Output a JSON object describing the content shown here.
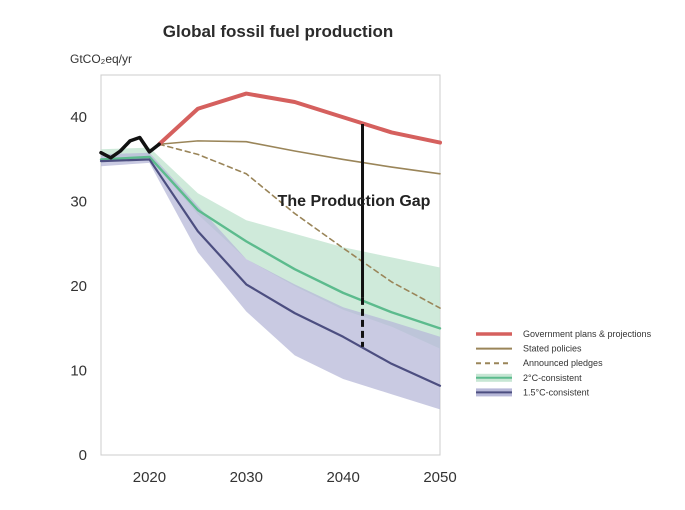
{
  "chart_data": {
    "type": "line",
    "title": "Global fossil fuel production",
    "ylabel": "GtCO₂eq/yr",
    "xlim": [
      2015,
      2050
    ],
    "ylim": [
      0,
      45
    ],
    "xticks": [
      2020,
      2030,
      2040,
      2050
    ],
    "yticks": [
      0,
      10,
      20,
      30,
      40
    ],
    "annotation": "The Production Gap",
    "gap_marker": {
      "x": 2042,
      "y_top": 39.2,
      "y_mid": 18.6,
      "y_bottom": 12.8
    },
    "historical": {
      "x": [
        2015,
        2016,
        2017,
        2018,
        2019,
        2020,
        2021
      ],
      "y": [
        35.8,
        35.2,
        36.0,
        37.2,
        37.6,
        35.9,
        36.8
      ]
    },
    "bands": [
      {
        "name": "2°C-consistent",
        "x": [
          2015,
          2020,
          2025,
          2030,
          2035,
          2040,
          2045,
          2050
        ],
        "upper": [
          36.2,
          36.4,
          31.0,
          27.8,
          26.2,
          24.6,
          23.4,
          22.2
        ],
        "lower": [
          35.0,
          35.2,
          28.5,
          23.2,
          20.0,
          17.2,
          15.2,
          12.6
        ]
      },
      {
        "name": "1.5°C-consistent",
        "x": [
          2015,
          2020,
          2025,
          2030,
          2035,
          2040,
          2045,
          2050
        ],
        "upper": [
          35.6,
          35.8,
          29.5,
          23.2,
          20.2,
          17.5,
          15.8,
          14.0
        ],
        "lower": [
          34.2,
          34.6,
          24.0,
          17.0,
          11.8,
          9.0,
          7.2,
          5.4
        ]
      }
    ],
    "series": [
      {
        "name": "Government plans & projections",
        "x": [
          2021,
          2025,
          2030,
          2035,
          2040,
          2045,
          2050
        ],
        "values": [
          36.8,
          41.0,
          42.8,
          41.8,
          40.0,
          38.2,
          37.0
        ]
      },
      {
        "name": "Stated policies",
        "x": [
          2021,
          2025,
          2030,
          2035,
          2040,
          2045,
          2050
        ],
        "values": [
          36.8,
          37.2,
          37.1,
          36.0,
          35.0,
          34.1,
          33.3
        ]
      },
      {
        "name": "Announced pledges",
        "x": [
          2021,
          2025,
          2030,
          2035,
          2040,
          2045,
          2050
        ],
        "values": [
          36.8,
          35.6,
          33.3,
          28.6,
          24.5,
          20.5,
          17.4
        ]
      },
      {
        "name": "2°C-consistent",
        "x": [
          2015,
          2020,
          2025,
          2030,
          2035,
          2040,
          2045,
          2050
        ],
        "values": [
          35.0,
          35.3,
          29.0,
          25.3,
          22.0,
          19.2,
          16.9,
          15.0
        ]
      },
      {
        "name": "1.5°C-consistent",
        "x": [
          2015,
          2020,
          2025,
          2030,
          2035,
          2040,
          2045,
          2050
        ],
        "values": [
          34.8,
          35.0,
          26.5,
          20.2,
          16.8,
          14.0,
          10.8,
          8.2
        ]
      }
    ],
    "legend": {
      "position": "right",
      "entries": [
        {
          "label": "Government plans & projections",
          "color": "#d5605e",
          "style": "solid"
        },
        {
          "label": "Stated policies",
          "color": "#9a8559",
          "style": "solid"
        },
        {
          "label": "Announced pledges",
          "color": "#9a8559",
          "style": "dashed"
        },
        {
          "label": "2°C-consistent",
          "color": "#5cbb8d",
          "style": "solid",
          "band": "#c7e6d4"
        },
        {
          "label": "1.5°C-consistent",
          "color": "#4c4e80",
          "style": "solid",
          "band": "#b7b8d8"
        }
      ]
    },
    "colors": {
      "government": "#d5605e",
      "stated": "#9a8559",
      "pledges": "#9a8559",
      "two_c_line": "#5cbb8d",
      "two_c_band": "#c7e6d4",
      "one_five_line": "#4c4e80",
      "one_five_band": "#b7b8d8",
      "historical": "#111111",
      "gap": "#111111"
    },
    "grid": false
  }
}
